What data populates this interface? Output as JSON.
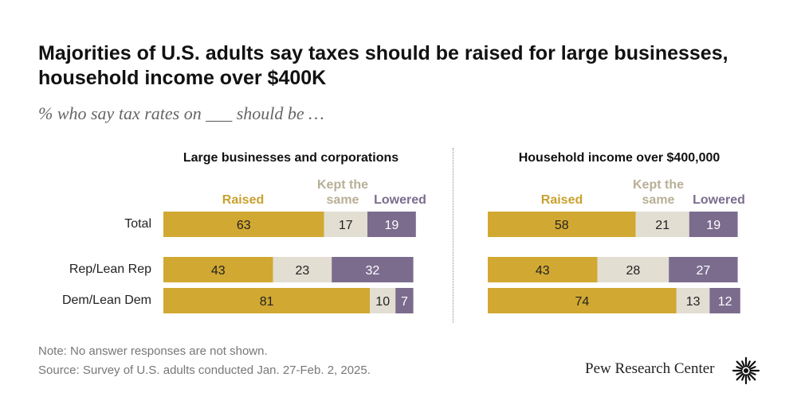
{
  "title": "Majorities of U.S. adults say taxes should be raised for large businesses, household income over $400K",
  "subtitle": "% who say tax rates on ___ should be …",
  "legend": {
    "raised": "Raised",
    "same_line1": "Kept the",
    "same_line2": "same",
    "lowered": "Lowered"
  },
  "colors": {
    "raised": "#D1A832",
    "same": "#E2DED2",
    "lowered": "#7B6C8E"
  },
  "row_labels": [
    "Total",
    "Rep/Lean Rep",
    "Dem/Lean Dem"
  ],
  "note": "Note: No answer responses are not shown.",
  "source": "Source: Survey of U.S. adults conducted Jan. 27-Feb. 2, 2025.",
  "brand": "Pew Research Center",
  "chart_data": [
    {
      "type": "bar",
      "stacked": true,
      "orientation": "horizontal",
      "title": "Large businesses and corporations",
      "categories": [
        "Total",
        "Rep/Lean Rep",
        "Dem/Lean Dem"
      ],
      "series": [
        {
          "name": "Raised",
          "values": [
            63,
            43,
            81
          ]
        },
        {
          "name": "Kept the same",
          "values": [
            17,
            23,
            10
          ]
        },
        {
          "name": "Lowered",
          "values": [
            19,
            32,
            7
          ]
        }
      ]
    },
    {
      "type": "bar",
      "stacked": true,
      "orientation": "horizontal",
      "title": "Household income over $400,000",
      "categories": [
        "Total",
        "Rep/Lean Rep",
        "Dem/Lean Dem"
      ],
      "series": [
        {
          "name": "Raised",
          "values": [
            58,
            43,
            74
          ]
        },
        {
          "name": "Kept the same",
          "values": [
            21,
            28,
            13
          ]
        },
        {
          "name": "Lowered",
          "values": [
            19,
            27,
            12
          ]
        }
      ]
    }
  ]
}
